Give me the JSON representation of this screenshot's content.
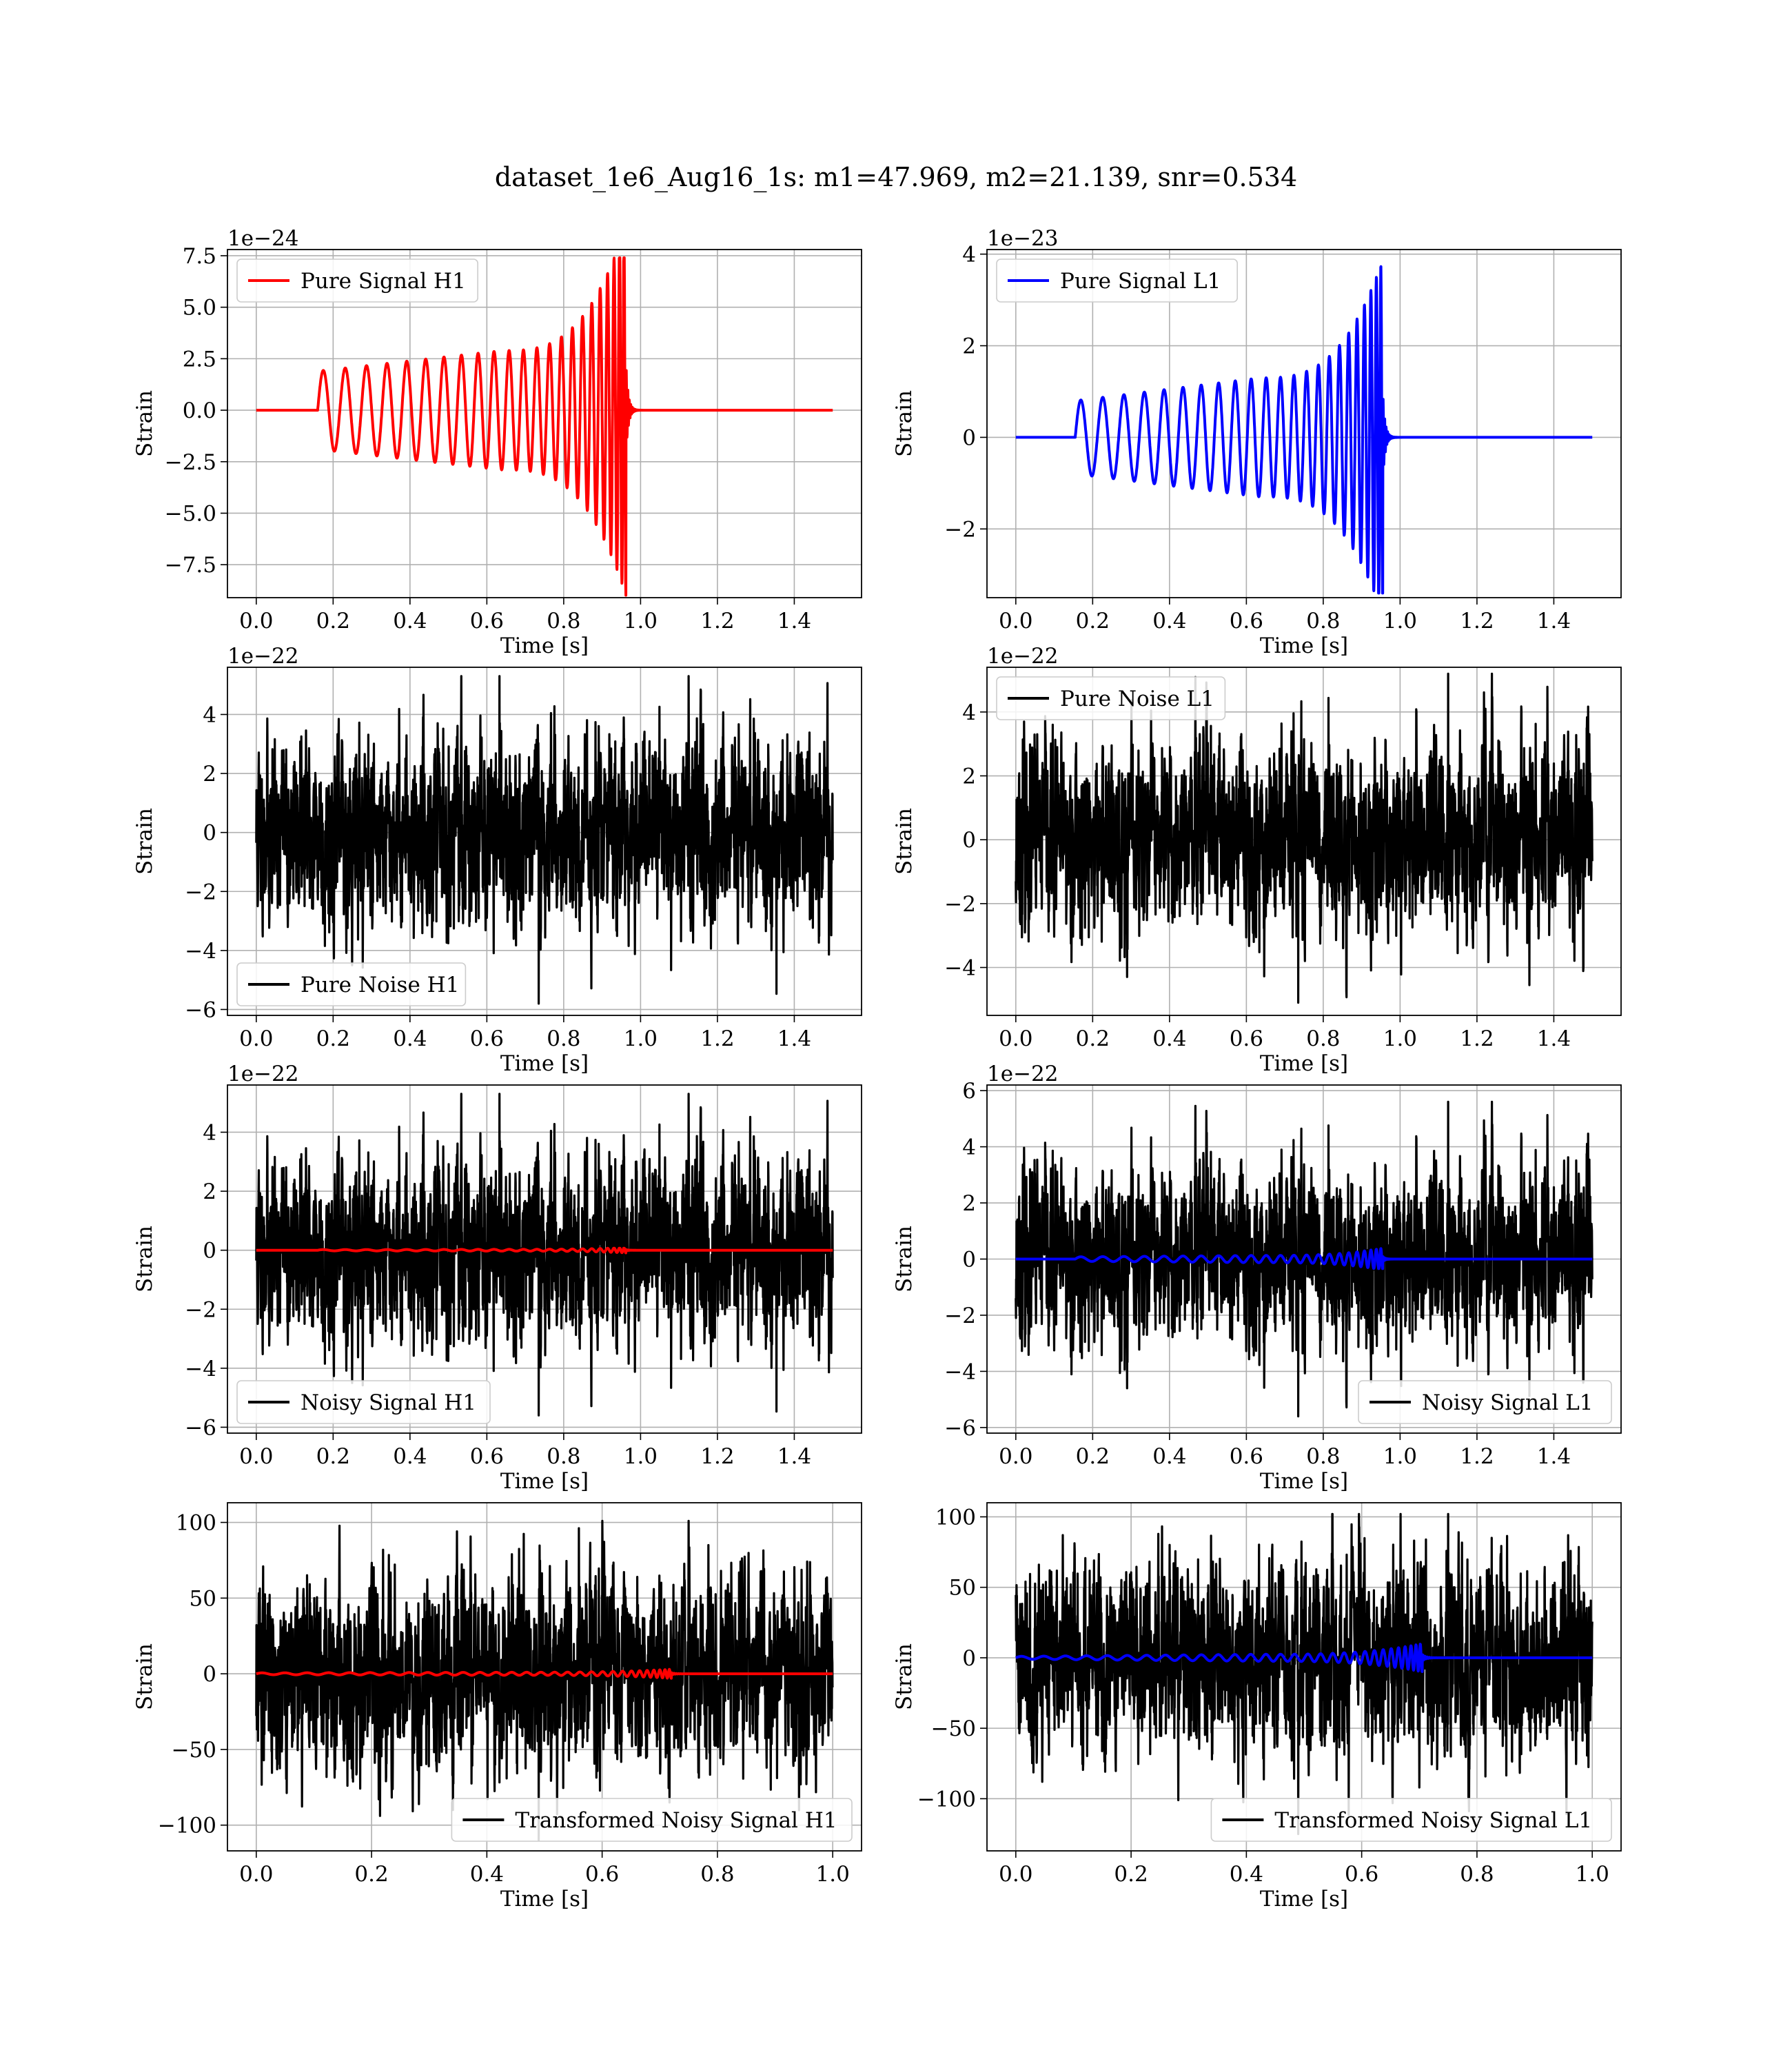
{
  "figure": {
    "suptitle": "dataset_1e6_Aug16_1s: m1=47.969, m2=21.139, snr=0.534"
  },
  "colors": {
    "h1_signal": "#ff0000",
    "l1_signal": "#0000ff",
    "noise": "#000000",
    "grid": "#b0b0b0"
  },
  "chart_data": [
    {
      "type": "line",
      "id": "pure-signal-h1",
      "xlabel": "Time [s]",
      "ylabel": "Strain",
      "offset": "1e−24",
      "xlim": [
        -0.075,
        1.575
      ],
      "ylim": [
        -9.1,
        7.8
      ],
      "xticks": [
        0.0,
        0.2,
        0.4,
        0.6,
        0.8,
        1.0,
        1.2,
        1.4
      ],
      "xtick_labels": [
        "0.0",
        "0.2",
        "0.4",
        "0.6",
        "0.8",
        "1.0",
        "1.2",
        "1.4"
      ],
      "yticks": [
        -7.5,
        -5.0,
        -2.5,
        0.0,
        2.5,
        5.0,
        7.5
      ],
      "ytick_labels": [
        "−7.5",
        "−5.0",
        "−2.5",
        "0.0",
        "2.5",
        "5.0",
        "7.5"
      ],
      "grid": true,
      "legend_loc": "upper-left",
      "legend": [
        "Pure Signal H1"
      ],
      "series": [
        {
          "name": "Pure Signal H1",
          "color": "#ff0000",
          "kind": "chirp",
          "t_start": 0.16,
          "t_merge": 0.962,
          "t_end": 1.5,
          "peak_min": -9.0,
          "peak_max": 7.4,
          "start_amp": 1.9,
          "mid_amp": 2.9,
          "cycles": 26
        }
      ]
    },
    {
      "type": "line",
      "id": "pure-signal-l1",
      "xlabel": "Time [s]",
      "ylabel": "Strain",
      "offset": "1e−23",
      "xlim": [
        -0.075,
        1.575
      ],
      "ylim": [
        -3.5,
        4.1
      ],
      "xticks": [
        0.0,
        0.2,
        0.4,
        0.6,
        0.8,
        1.0,
        1.2,
        1.4
      ],
      "xtick_labels": [
        "0.0",
        "0.2",
        "0.4",
        "0.6",
        "0.8",
        "1.0",
        "1.2",
        "1.4"
      ],
      "yticks": [
        -2,
        0,
        2,
        4
      ],
      "ytick_labels": [
        "−2",
        "0",
        "2",
        "4"
      ],
      "grid": true,
      "legend_loc": "upper-left",
      "legend": [
        "Pure Signal L1"
      ],
      "series": [
        {
          "name": "Pure Signal L1",
          "color": "#0000ff",
          "kind": "chirp",
          "t_start": 0.155,
          "t_merge": 0.955,
          "t_end": 1.5,
          "peak_min": -3.4,
          "peak_max": 3.9,
          "start_amp": 0.8,
          "mid_amp": 1.3,
          "cycles": 26
        }
      ]
    },
    {
      "type": "line",
      "id": "pure-noise-h1",
      "xlabel": "Time [s]",
      "ylabel": "Strain",
      "offset": "1e−22",
      "xlim": [
        -0.075,
        1.575
      ],
      "ylim": [
        -6.2,
        5.6
      ],
      "xticks": [
        0.0,
        0.2,
        0.4,
        0.6,
        0.8,
        1.0,
        1.2,
        1.4
      ],
      "xtick_labels": [
        "0.0",
        "0.2",
        "0.4",
        "0.6",
        "0.8",
        "1.0",
        "1.2",
        "1.4"
      ],
      "yticks": [
        -6,
        -4,
        -2,
        0,
        2,
        4
      ],
      "ytick_labels": [
        "−6",
        "−4",
        "−2",
        "0",
        "2",
        "4"
      ],
      "grid": true,
      "legend_loc": "lower-left",
      "legend": [
        "Pure Noise H1"
      ],
      "series": [
        {
          "name": "Pure Noise H1",
          "color": "#000000",
          "kind": "noise",
          "t_start": 0.0,
          "t_end": 1.5,
          "min": -5.8,
          "max": 5.3,
          "sigma": 1.5,
          "seed": 11
        }
      ]
    },
    {
      "type": "line",
      "id": "pure-noise-l1",
      "xlabel": "Time [s]",
      "ylabel": "Strain",
      "offset": "1e−22",
      "xlim": [
        -0.075,
        1.575
      ],
      "ylim": [
        -5.5,
        5.4
      ],
      "xticks": [
        0.0,
        0.2,
        0.4,
        0.6,
        0.8,
        1.0,
        1.2,
        1.4
      ],
      "xtick_labels": [
        "0.0",
        "0.2",
        "0.4",
        "0.6",
        "0.8",
        "1.0",
        "1.2",
        "1.4"
      ],
      "yticks": [
        -4,
        -2,
        0,
        2,
        4
      ],
      "ytick_labels": [
        "−4",
        "−2",
        "0",
        "2",
        "4"
      ],
      "grid": true,
      "legend_loc": "upper-left",
      "legend": [
        "Pure Noise L1"
      ],
      "series": [
        {
          "name": "Pure Noise L1",
          "color": "#000000",
          "kind": "noise",
          "t_start": 0.0,
          "t_end": 1.5,
          "min": -5.1,
          "max": 5.2,
          "sigma": 1.4,
          "seed": 23
        }
      ]
    },
    {
      "type": "line",
      "id": "noisy-signal-h1",
      "xlabel": "Time [s]",
      "ylabel": "Strain",
      "offset": "1e−22",
      "xlim": [
        -0.075,
        1.575
      ],
      "ylim": [
        -6.2,
        5.6
      ],
      "xticks": [
        0.0,
        0.2,
        0.4,
        0.6,
        0.8,
        1.0,
        1.2,
        1.4
      ],
      "xtick_labels": [
        "0.0",
        "0.2",
        "0.4",
        "0.6",
        "0.8",
        "1.0",
        "1.2",
        "1.4"
      ],
      "yticks": [
        -6,
        -4,
        -2,
        0,
        2,
        4
      ],
      "ytick_labels": [
        "−6",
        "−4",
        "−2",
        "0",
        "2",
        "4"
      ],
      "grid": true,
      "legend_loc": "lower-left",
      "legend": [
        "Noisy Signal H1"
      ],
      "series": [
        {
          "name": "Noisy Signal H1",
          "color": "#000000",
          "kind": "noise",
          "t_start": 0.0,
          "t_end": 1.5,
          "min": -5.6,
          "max": 5.3,
          "sigma": 1.5,
          "seed": 11
        },
        {
          "color": "#ff0000",
          "kind": "chirp",
          "t_start": 0.16,
          "t_merge": 0.962,
          "t_end": 1.5,
          "peak_min": -0.09,
          "peak_max": 0.07,
          "start_amp": 0.02,
          "mid_amp": 0.03,
          "cycles": 26
        }
      ]
    },
    {
      "type": "line",
      "id": "noisy-signal-l1",
      "xlabel": "Time [s]",
      "ylabel": "Strain",
      "offset": "1e−22",
      "xlim": [
        -0.075,
        1.575
      ],
      "ylim": [
        -6.2,
        6.2
      ],
      "xticks": [
        0.0,
        0.2,
        0.4,
        0.6,
        0.8,
        1.0,
        1.2,
        1.4
      ],
      "xtick_labels": [
        "0.0",
        "0.2",
        "0.4",
        "0.6",
        "0.8",
        "1.0",
        "1.2",
        "1.4"
      ],
      "yticks": [
        -6,
        -4,
        -2,
        0,
        2,
        4,
        6
      ],
      "ytick_labels": [
        "−6",
        "−4",
        "−2",
        "0",
        "2",
        "4",
        "6"
      ],
      "grid": true,
      "legend_loc": "lower-right",
      "legend": [
        "Noisy Signal L1"
      ],
      "series": [
        {
          "name": "Noisy Signal L1",
          "color": "#000000",
          "kind": "noise",
          "t_start": 0.0,
          "t_end": 1.5,
          "min": -5.6,
          "max": 5.6,
          "sigma": 1.5,
          "seed": 23
        },
        {
          "color": "#0000ff",
          "kind": "chirp",
          "t_start": 0.155,
          "t_merge": 0.955,
          "t_end": 1.5,
          "peak_min": -0.34,
          "peak_max": 0.39,
          "start_amp": 0.08,
          "mid_amp": 0.13,
          "cycles": 26
        }
      ]
    },
    {
      "type": "line",
      "id": "transformed-noisy-signal-h1",
      "xlabel": "Time [s]",
      "ylabel": "Strain",
      "offset": "",
      "xlim": [
        -0.05,
        1.05
      ],
      "ylim": [
        -117,
        113
      ],
      "xticks": [
        0.0,
        0.2,
        0.4,
        0.6,
        0.8,
        1.0
      ],
      "xtick_labels": [
        "0.0",
        "0.2",
        "0.4",
        "0.6",
        "0.8",
        "1.0"
      ],
      "yticks": [
        -100,
        -50,
        0,
        50,
        100
      ],
      "ytick_labels": [
        "−100",
        "−50",
        "0",
        "50",
        "100"
      ],
      "grid": true,
      "legend_loc": "lower-right",
      "legend": [
        "Transformed Noisy Signal H1"
      ],
      "series": [
        {
          "name": "Transformed Noisy Signal H1",
          "color": "#000000",
          "kind": "noise",
          "t_start": 0.0,
          "t_end": 1.0,
          "min": -110,
          "max": 101,
          "sigma": 30,
          "seed": 37
        },
        {
          "color": "#ff0000",
          "kind": "chirp",
          "t_start": 0.0,
          "t_merge": 0.72,
          "t_end": 1.0,
          "peak_min": -3,
          "peak_max": 3,
          "start_amp": 0.6,
          "mid_amp": 1.0,
          "cycles": 34
        }
      ]
    },
    {
      "type": "line",
      "id": "transformed-noisy-signal-l1",
      "xlabel": "Time [s]",
      "ylabel": "Strain",
      "offset": "",
      "xlim": [
        -0.05,
        1.05
      ],
      "ylim": [
        -137,
        110
      ],
      "xticks": [
        0.0,
        0.2,
        0.4,
        0.6,
        0.8,
        1.0
      ],
      "xtick_labels": [
        "0.0",
        "0.2",
        "0.4",
        "0.6",
        "0.8",
        "1.0"
      ],
      "yticks": [
        -100,
        -50,
        0,
        50,
        100
      ],
      "ytick_labels": [
        "−100",
        "−50",
        "0",
        "50",
        "100"
      ],
      "grid": true,
      "legend_loc": "lower-right",
      "legend": [
        "Transformed Noisy Signal L1"
      ],
      "series": [
        {
          "name": "Transformed Noisy Signal L1",
          "color": "#000000",
          "kind": "noise",
          "t_start": 0.0,
          "t_end": 1.0,
          "min": -125,
          "max": 102,
          "sigma": 32,
          "seed": 41
        },
        {
          "color": "#0000ff",
          "kind": "chirp",
          "t_start": 0.0,
          "t_merge": 0.705,
          "t_end": 1.0,
          "peak_min": -10,
          "peak_max": 10,
          "start_amp": 1.0,
          "mid_amp": 2.5,
          "cycles": 34
        }
      ]
    }
  ]
}
